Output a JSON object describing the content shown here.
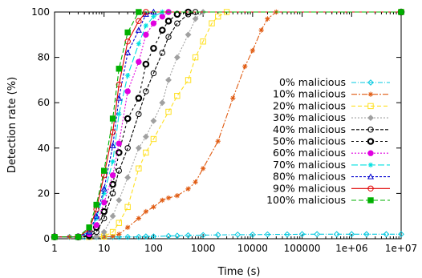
{
  "chart_data": {
    "type": "line",
    "xlabel": "Time (s)",
    "ylabel": "Detection rate (%)",
    "xscale": "log",
    "xlim": [
      1,
      10000000
    ],
    "ylim": [
      0,
      100
    ],
    "x_ticks": [
      1,
      10,
      100,
      1000,
      10000,
      100000,
      1000000,
      10000000
    ],
    "x_tick_labels": [
      "1",
      "10",
      "100",
      "1000",
      "10000",
      "100000",
      "1e+06",
      "1e+07"
    ],
    "y_ticks": [
      0,
      20,
      40,
      60,
      80,
      100
    ],
    "y_tick_labels": [
      "0",
      "20",
      "40",
      "60",
      "80",
      "100"
    ],
    "grid": false,
    "legend_position": "right",
    "series": [
      {
        "name": "0% malicious",
        "color": "#00c8e0",
        "dash": "6,2,1,2",
        "marker": "diamond-open",
        "points": [
          [
            1,
            0.8
          ],
          [
            2,
            0.8
          ],
          [
            3,
            0.8
          ],
          [
            4,
            0.8
          ],
          [
            5,
            0.8
          ],
          [
            7,
            0.8
          ],
          [
            10,
            0.8
          ],
          [
            15,
            0.8
          ],
          [
            20,
            0.8
          ],
          [
            30,
            0.8
          ],
          [
            50,
            0.8
          ],
          [
            70,
            1
          ],
          [
            100,
            1
          ],
          [
            200,
            1.2
          ],
          [
            300,
            1.3
          ],
          [
            500,
            1.5
          ],
          [
            1000,
            1.6
          ],
          [
            2000,
            1.7
          ],
          [
            5000,
            1.8
          ],
          [
            10000,
            1.8
          ],
          [
            20000,
            1.9
          ],
          [
            50000,
            1.9
          ],
          [
            100000,
            2
          ],
          [
            200000,
            2
          ],
          [
            500000,
            2
          ],
          [
            1000000,
            2
          ],
          [
            2000000,
            2
          ],
          [
            5000000,
            2
          ],
          [
            10000000,
            2
          ]
        ]
      },
      {
        "name": "10% malicious",
        "color": "#e05a10",
        "dash": "7,2,2,2",
        "marker": "star",
        "points": [
          [
            1,
            0.8
          ],
          [
            2,
            0.8
          ],
          [
            5,
            0.8
          ],
          [
            10,
            0.8
          ],
          [
            15,
            1
          ],
          [
            20,
            2
          ],
          [
            30,
            5
          ],
          [
            50,
            9
          ],
          [
            70,
            12
          ],
          [
            100,
            14
          ],
          [
            150,
            17
          ],
          [
            200,
            18
          ],
          [
            300,
            19
          ],
          [
            500,
            22
          ],
          [
            700,
            25
          ],
          [
            1000,
            31
          ],
          [
            2000,
            43
          ],
          [
            4000,
            62
          ],
          [
            7000,
            76
          ],
          [
            10000,
            83
          ],
          [
            15000,
            92
          ],
          [
            20000,
            97
          ],
          [
            30000,
            100
          ],
          [
            10000000,
            100
          ]
        ]
      },
      {
        "name": "20% malicious",
        "color": "#ffe020",
        "dash": "5,3",
        "marker": "square-open",
        "points": [
          [
            1,
            0.8
          ],
          [
            5,
            0.8
          ],
          [
            10,
            1
          ],
          [
            15,
            3
          ],
          [
            20,
            7
          ],
          [
            30,
            14
          ],
          [
            50,
            31
          ],
          [
            70,
            38
          ],
          [
            100,
            44
          ],
          [
            200,
            56
          ],
          [
            300,
            63
          ],
          [
            500,
            70
          ],
          [
            700,
            80
          ],
          [
            1000,
            87
          ],
          [
            1500,
            95
          ],
          [
            2000,
            98
          ],
          [
            3000,
            100
          ],
          [
            10000000,
            100
          ]
        ]
      },
      {
        "name": "30% malicious",
        "color": "#a0a0a0",
        "dash": "2,2",
        "marker": "diamond-filled",
        "points": [
          [
            1,
            0.8
          ],
          [
            5,
            0.8
          ],
          [
            7,
            1
          ],
          [
            10,
            3
          ],
          [
            15,
            10
          ],
          [
            20,
            17
          ],
          [
            30,
            27
          ],
          [
            50,
            40
          ],
          [
            70,
            45
          ],
          [
            100,
            52
          ],
          [
            150,
            60
          ],
          [
            200,
            70
          ],
          [
            300,
            80
          ],
          [
            500,
            90
          ],
          [
            700,
            97
          ],
          [
            1000,
            100
          ],
          [
            10000000,
            100
          ]
        ]
      },
      {
        "name": "40% malicious",
        "color": "#000000",
        "dash": "4,2",
        "marker": "circle-open",
        "points": [
          [
            1,
            0.8
          ],
          [
            3,
            0.8
          ],
          [
            5,
            1
          ],
          [
            7,
            3
          ],
          [
            10,
            9
          ],
          [
            15,
            20
          ],
          [
            20,
            30
          ],
          [
            30,
            40
          ],
          [
            50,
            55
          ],
          [
            70,
            65
          ],
          [
            100,
            73
          ],
          [
            150,
            82
          ],
          [
            200,
            89
          ],
          [
            300,
            95
          ],
          [
            500,
            99
          ],
          [
            700,
            100
          ],
          [
            10000000,
            100
          ]
        ]
      },
      {
        "name": "50% malicious",
        "color": "#000000",
        "dash": "3,3",
        "marker": "circle-bold",
        "points": [
          [
            1,
            0.8
          ],
          [
            3,
            0.8
          ],
          [
            5,
            1.5
          ],
          [
            7,
            5
          ],
          [
            10,
            12
          ],
          [
            15,
            24
          ],
          [
            20,
            38
          ],
          [
            30,
            53
          ],
          [
            50,
            62
          ],
          [
            70,
            77
          ],
          [
            100,
            84
          ],
          [
            150,
            92
          ],
          [
            200,
            96
          ],
          [
            300,
            99
          ],
          [
            500,
            100
          ],
          [
            10000000,
            100
          ]
        ]
      },
      {
        "name": "60% malicious",
        "color": "#e000e0",
        "dash": "2,2",
        "marker": "circle-filled",
        "points": [
          [
            1,
            0.8
          ],
          [
            3,
            0.8
          ],
          [
            5,
            2
          ],
          [
            7,
            6
          ],
          [
            10,
            16
          ],
          [
            15,
            28
          ],
          [
            20,
            42
          ],
          [
            30,
            65
          ],
          [
            50,
            78
          ],
          [
            70,
            90
          ],
          [
            100,
            95
          ],
          [
            150,
            98
          ],
          [
            200,
            100
          ],
          [
            10000000,
            100
          ]
        ]
      },
      {
        "name": "70% malicious",
        "color": "#00e0e0",
        "dash": "8,3",
        "marker": "star",
        "points": [
          [
            1,
            0.8
          ],
          [
            3,
            0.8
          ],
          [
            5,
            3
          ],
          [
            7,
            9
          ],
          [
            10,
            20
          ],
          [
            15,
            34
          ],
          [
            20,
            55
          ],
          [
            30,
            72
          ],
          [
            50,
            86
          ],
          [
            70,
            94
          ],
          [
            100,
            98
          ],
          [
            150,
            100
          ],
          [
            10000000,
            100
          ]
        ]
      },
      {
        "name": "80% malicious",
        "color": "#0000d0",
        "dash": "3,2",
        "marker": "triangle-open",
        "points": [
          [
            1,
            0.8
          ],
          [
            3,
            0.8
          ],
          [
            5,
            3
          ],
          [
            7,
            10
          ],
          [
            10,
            22
          ],
          [
            15,
            41
          ],
          [
            20,
            62
          ],
          [
            30,
            82
          ],
          [
            50,
            92
          ],
          [
            70,
            99
          ],
          [
            100,
            100
          ],
          [
            10000000,
            100
          ]
        ]
      },
      {
        "name": "90% malicious",
        "color": "#e00000",
        "dash": "",
        "marker": "circle-open",
        "points": [
          [
            1,
            0.8
          ],
          [
            3,
            0.8
          ],
          [
            5,
            4
          ],
          [
            7,
            13
          ],
          [
            10,
            28
          ],
          [
            15,
            47
          ],
          [
            20,
            68
          ],
          [
            30,
            87
          ],
          [
            50,
            96
          ],
          [
            70,
            100
          ],
          [
            10000000,
            100
          ]
        ]
      },
      {
        "name": "100% malicious",
        "color": "#00b000",
        "dash": "6,3",
        "marker": "square-filled",
        "points": [
          [
            1,
            0.8
          ],
          [
            3,
            0.8
          ],
          [
            5,
            5
          ],
          [
            7,
            15
          ],
          [
            10,
            30
          ],
          [
            15,
            53
          ],
          [
            20,
            75
          ],
          [
            30,
            91
          ],
          [
            50,
            100
          ],
          [
            10000000,
            100
          ]
        ]
      }
    ]
  }
}
